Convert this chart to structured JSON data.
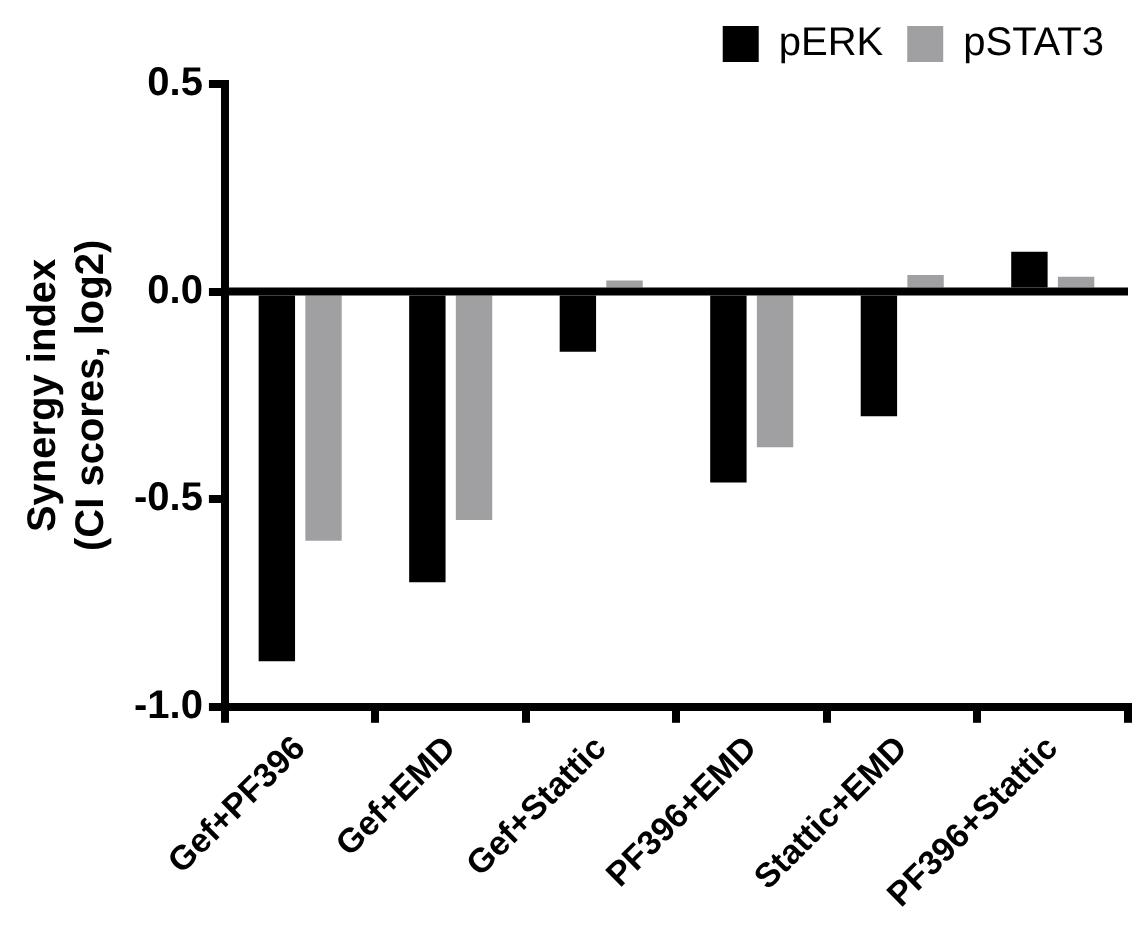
{
  "chart_data": {
    "type": "bar",
    "ylabel": "Synergy index\n(CI scores, log2)",
    "categories": [
      "Gef+PF396",
      "Gef+EMD",
      "Gef+Stattic",
      "PF396+EMD",
      "Stattic+EMD",
      "PF396+Stattic"
    ],
    "series": [
      {
        "name": "pERK",
        "color": "#000000",
        "values": [
          -0.89,
          -0.7,
          -0.145,
          -0.46,
          -0.3,
          0.096
        ]
      },
      {
        "name": "pSTAT3",
        "color": "#a0a0a3",
        "values": [
          -0.6,
          -0.55,
          0.027,
          -0.375,
          0.04,
          0.036
        ]
      }
    ],
    "ylim": [
      -1.0,
      0.5
    ],
    "yticks": [
      {
        "value": -1.0,
        "label": "-1.0"
      },
      {
        "value": -0.5,
        "label": "-0.5"
      },
      {
        "value": 0,
        "label": "0.0"
      },
      {
        "value": 0.5,
        "label": "0.5"
      }
    ],
    "ref_lines": [
      {
        "axis": "y",
        "value": 0,
        "color": "#000000"
      }
    ],
    "grid": false,
    "legend": "top right"
  }
}
